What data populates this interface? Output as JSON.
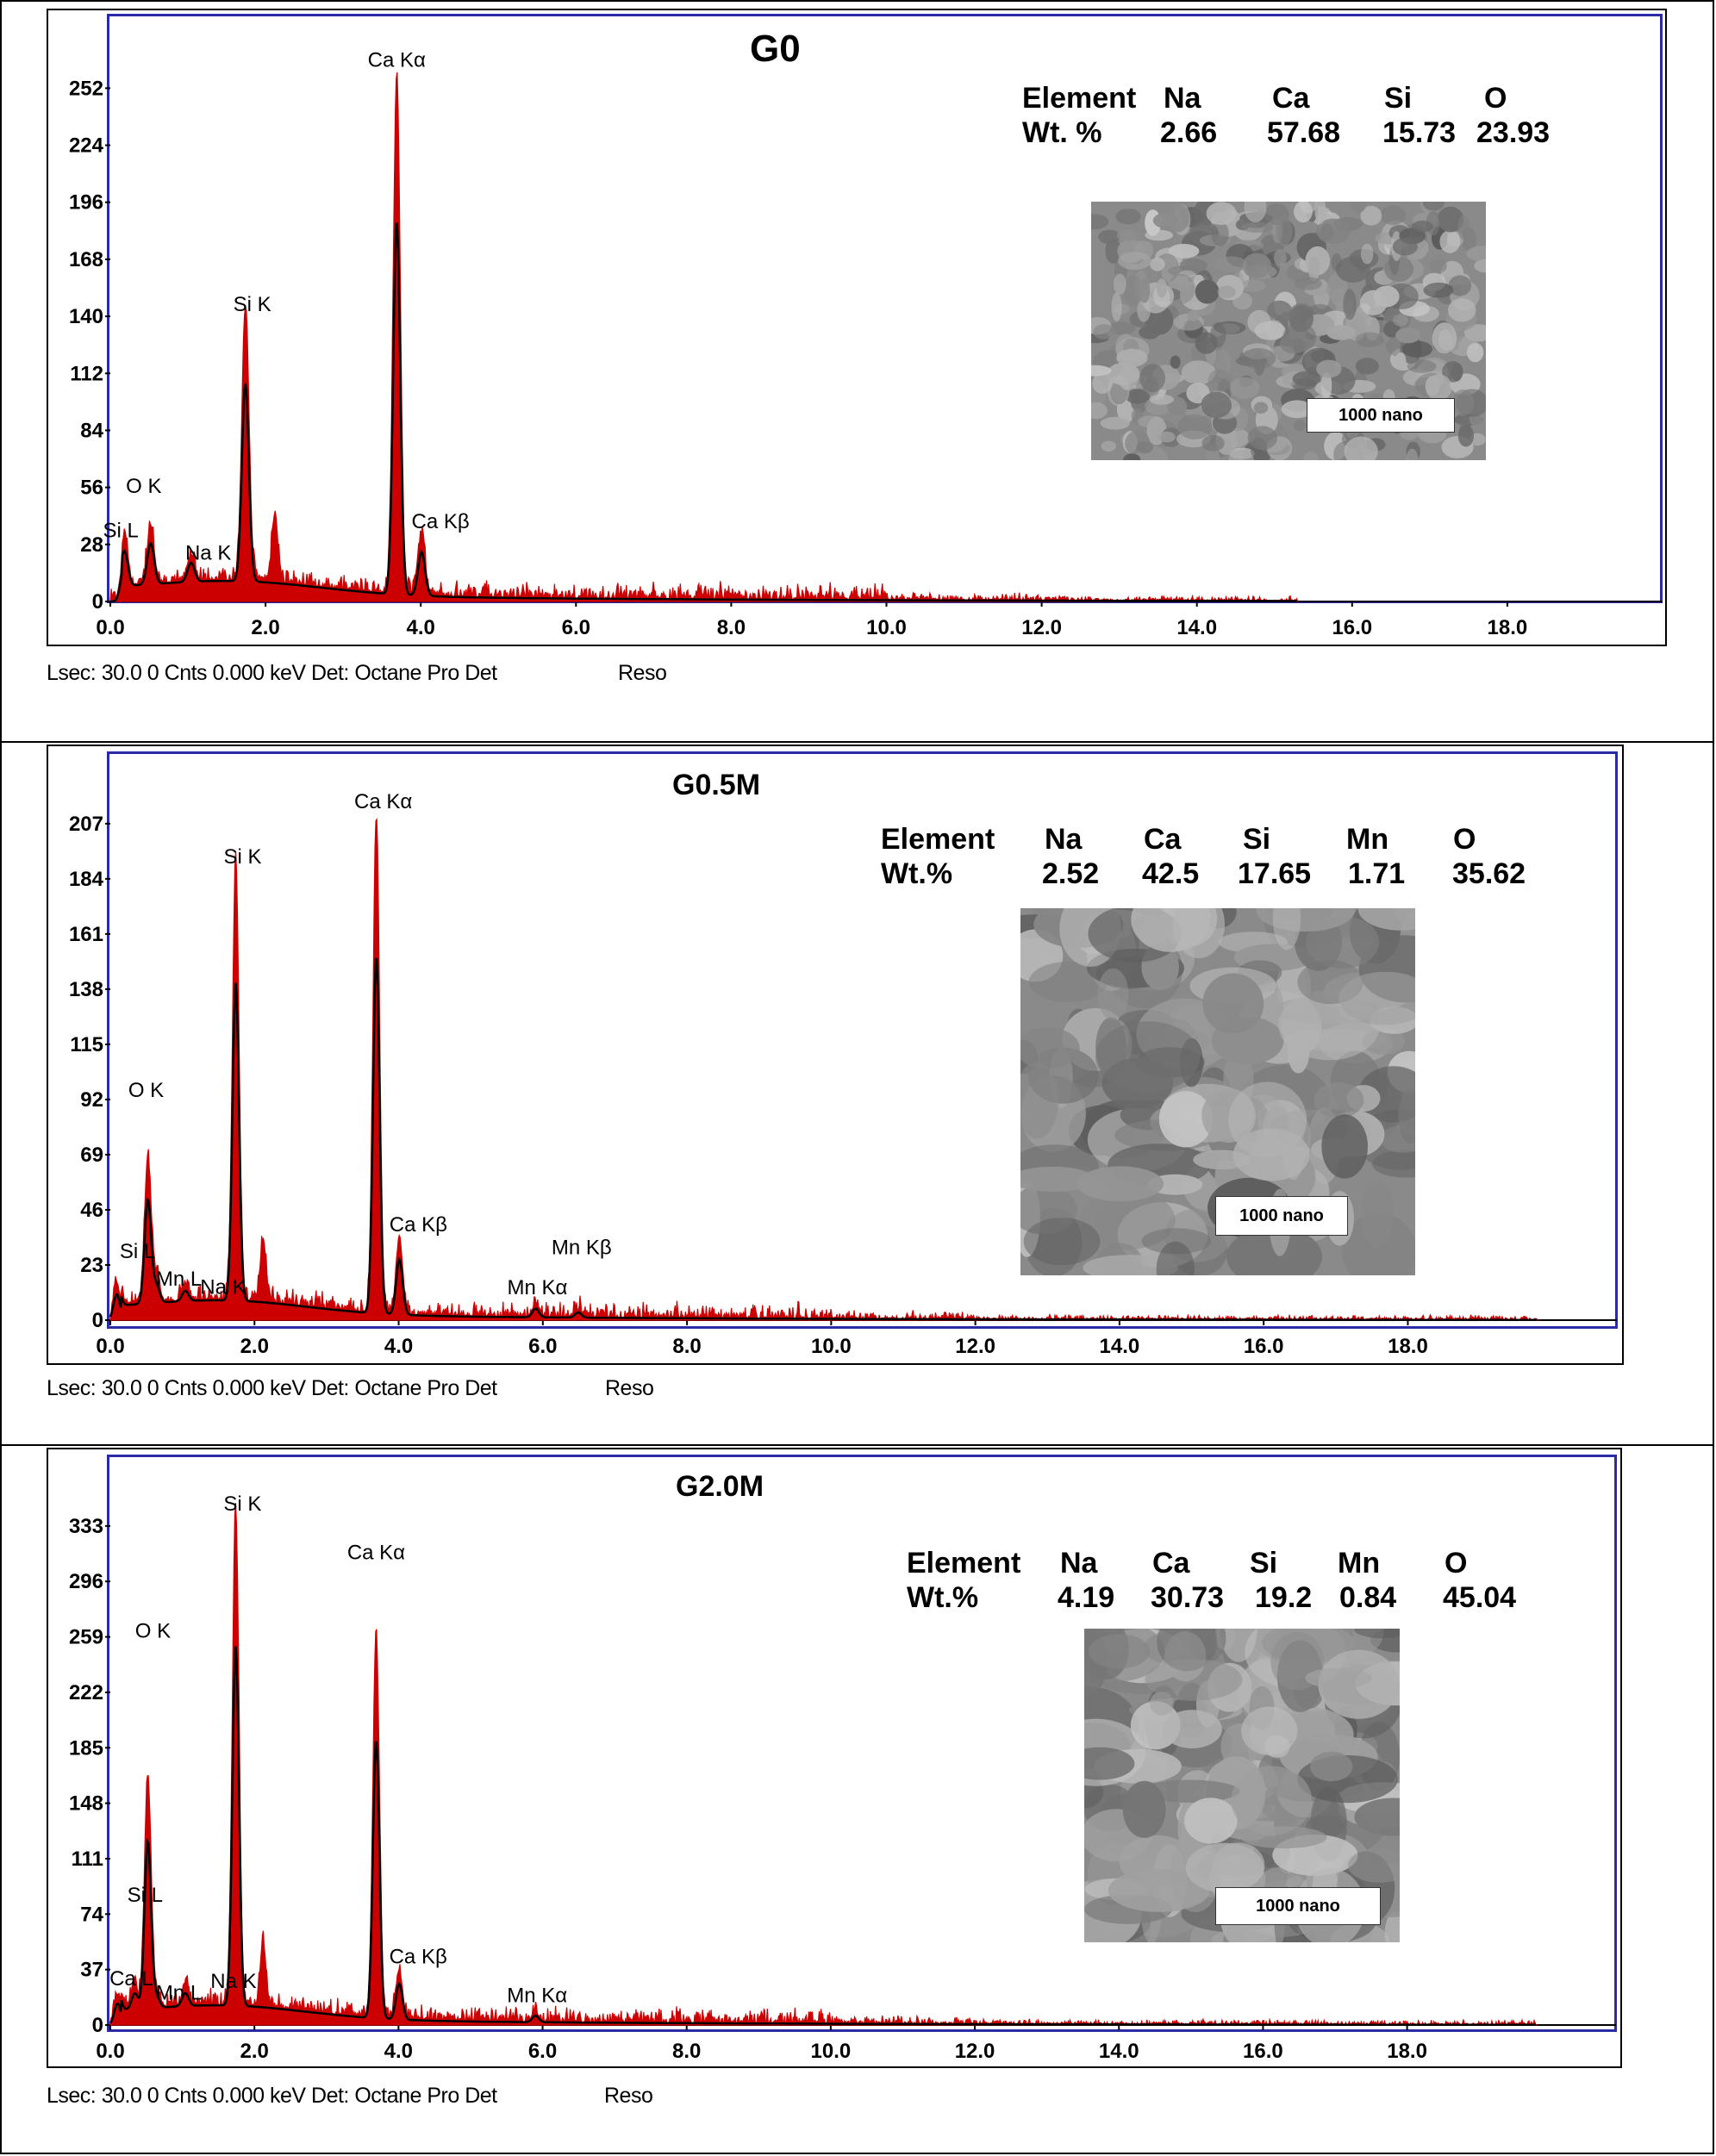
{
  "chart_data": [
    {
      "type": "line",
      "title": "G0",
      "xlabel": "",
      "ylabel": "",
      "xlim": [
        0,
        20
      ],
      "ylim": [
        0,
        264
      ],
      "x_ticks": [
        "0.0",
        "2.0",
        "4.0",
        "6.0",
        "8.0",
        "10.0",
        "12.0",
        "14.0",
        "16.0",
        "18.0"
      ],
      "y_ticks": [
        "0",
        "28",
        "56",
        "84",
        "112",
        "140",
        "168",
        "196",
        "224",
        "252"
      ],
      "peaks": [
        {
          "label": "Si L",
          "x": 0.18,
          "y": 24
        },
        {
          "label": "O  K",
          "x": 0.52,
          "y": 28
        },
        {
          "label": "Na K",
          "x": 1.04,
          "y": 13
        },
        {
          "label": "Si K",
          "x": 1.74,
          "y": 135
        },
        {
          "label": "Ca Kα",
          "x": 3.69,
          "y": 255
        },
        {
          "label": "Ca Kβ",
          "x": 4.01,
          "y": 30
        }
      ],
      "composition": {
        "header": [
          "Element",
          "Na",
          "Ca",
          "Si",
          "O"
        ],
        "values": [
          "Wt. %",
          "2.66",
          "57.68",
          "15.73",
          "23.93"
        ]
      },
      "sem_label": "1000 nano",
      "footer": "Lsec: 30.0 0 Cnts  0.000 keV Det: Octane Pro Det",
      "footer_reso": "Reso",
      "colors": {
        "spectrum": "#cc0000",
        "fit": "#000000",
        "frame": "#2b2ba8"
      }
    },
    {
      "type": "line",
      "title": "G0.5M",
      "xlabel": "",
      "ylabel": "",
      "xlim": [
        0,
        20.9
      ],
      "ylim": [
        0,
        217
      ],
      "x_ticks": [
        "0.0",
        "2.0",
        "4.0",
        "6.0",
        "8.0",
        "10.0",
        "12.0",
        "14.0",
        "16.0",
        "18.0"
      ],
      "y_ticks": [
        "0",
        "23",
        "46",
        "69",
        "92",
        "115",
        "138",
        "161",
        "184",
        "207"
      ],
      "peaks": [
        {
          "label": "Si L",
          "x": 0.09,
          "y": 15
        },
        {
          "label": "O  K",
          "x": 0.52,
          "y": 60
        },
        {
          "label": "Mn L",
          "x": 0.64,
          "y": 10
        },
        {
          "label": "Na K",
          "x": 1.04,
          "y": 6
        },
        {
          "label": "Si K",
          "x": 1.74,
          "y": 184
        },
        {
          "label": "Ca Kα",
          "x": 3.69,
          "y": 207
        },
        {
          "label": "Ca Kβ",
          "x": 4.01,
          "y": 32
        },
        {
          "label": "Mn Kα",
          "x": 5.9,
          "y": 5
        },
        {
          "label": "Mn Kβ",
          "x": 6.49,
          "y": 3
        }
      ],
      "composition": {
        "header": [
          "Element",
          "Na",
          "Ca",
          "Si",
          "Mn",
          "O"
        ],
        "values": [
          "Wt.%",
          "2.52",
          "42.5",
          "17.65",
          "1.71",
          "35.62"
        ]
      },
      "sem_label": "1000 nano",
      "footer": "Lsec: 30.0 0 Cnts  0.000 keV Det: Octane Pro Det",
      "footer_reso": "Reso",
      "colors": {
        "spectrum": "#cc0000",
        "fit": "#000000",
        "frame": "#2b2ba8"
      }
    },
    {
      "type": "line",
      "title": "G2.0M",
      "xlabel": "",
      "ylabel": "",
      "xlim": [
        0,
        20.9
      ],
      "ylim": [
        0,
        345
      ],
      "x_ticks": [
        "0.0",
        "2.0",
        "4.0",
        "6.0",
        "8.0",
        "10.0",
        "12.0",
        "14.0",
        "16.0",
        "18.0"
      ],
      "y_ticks": [
        "0",
        "37",
        "74",
        "111",
        "148",
        "185",
        "222",
        "259",
        "296",
        "333"
      ],
      "peaks": [
        {
          "label": "Ca L",
          "x": 0.34,
          "y": 15
        },
        {
          "label": "Si L",
          "x": 0.1,
          "y": 20
        },
        {
          "label": "O  K",
          "x": 0.52,
          "y": 155
        },
        {
          "label": "Mn L",
          "x": 0.64,
          "y": 10
        },
        {
          "label": "Na K",
          "x": 1.04,
          "y": 12
        },
        {
          "label": "Si K",
          "x": 1.74,
          "y": 333
        },
        {
          "label": "Ca Kα",
          "x": 3.69,
          "y": 258
        },
        {
          "label": "Ca Kβ",
          "x": 4.01,
          "y": 33
        },
        {
          "label": "Mn Kα",
          "x": 5.9,
          "y": 6
        }
      ],
      "composition": {
        "header": [
          "Element",
          "Na",
          "Ca",
          "Si",
          "Mn",
          "O"
        ],
        "values": [
          "Wt.%",
          "4.19",
          "30.73",
          "19.2",
          "0.84",
          "45.04"
        ]
      },
      "sem_label": "1000 nano",
      "footer": "Lsec: 30.0 0 Cnts  0.000 keV Det: Octane Pro Det",
      "footer_reso": "Reso",
      "colors": {
        "spectrum": "#cc0000",
        "fit": "#000000",
        "frame": "#2b2ba8"
      }
    }
  ]
}
